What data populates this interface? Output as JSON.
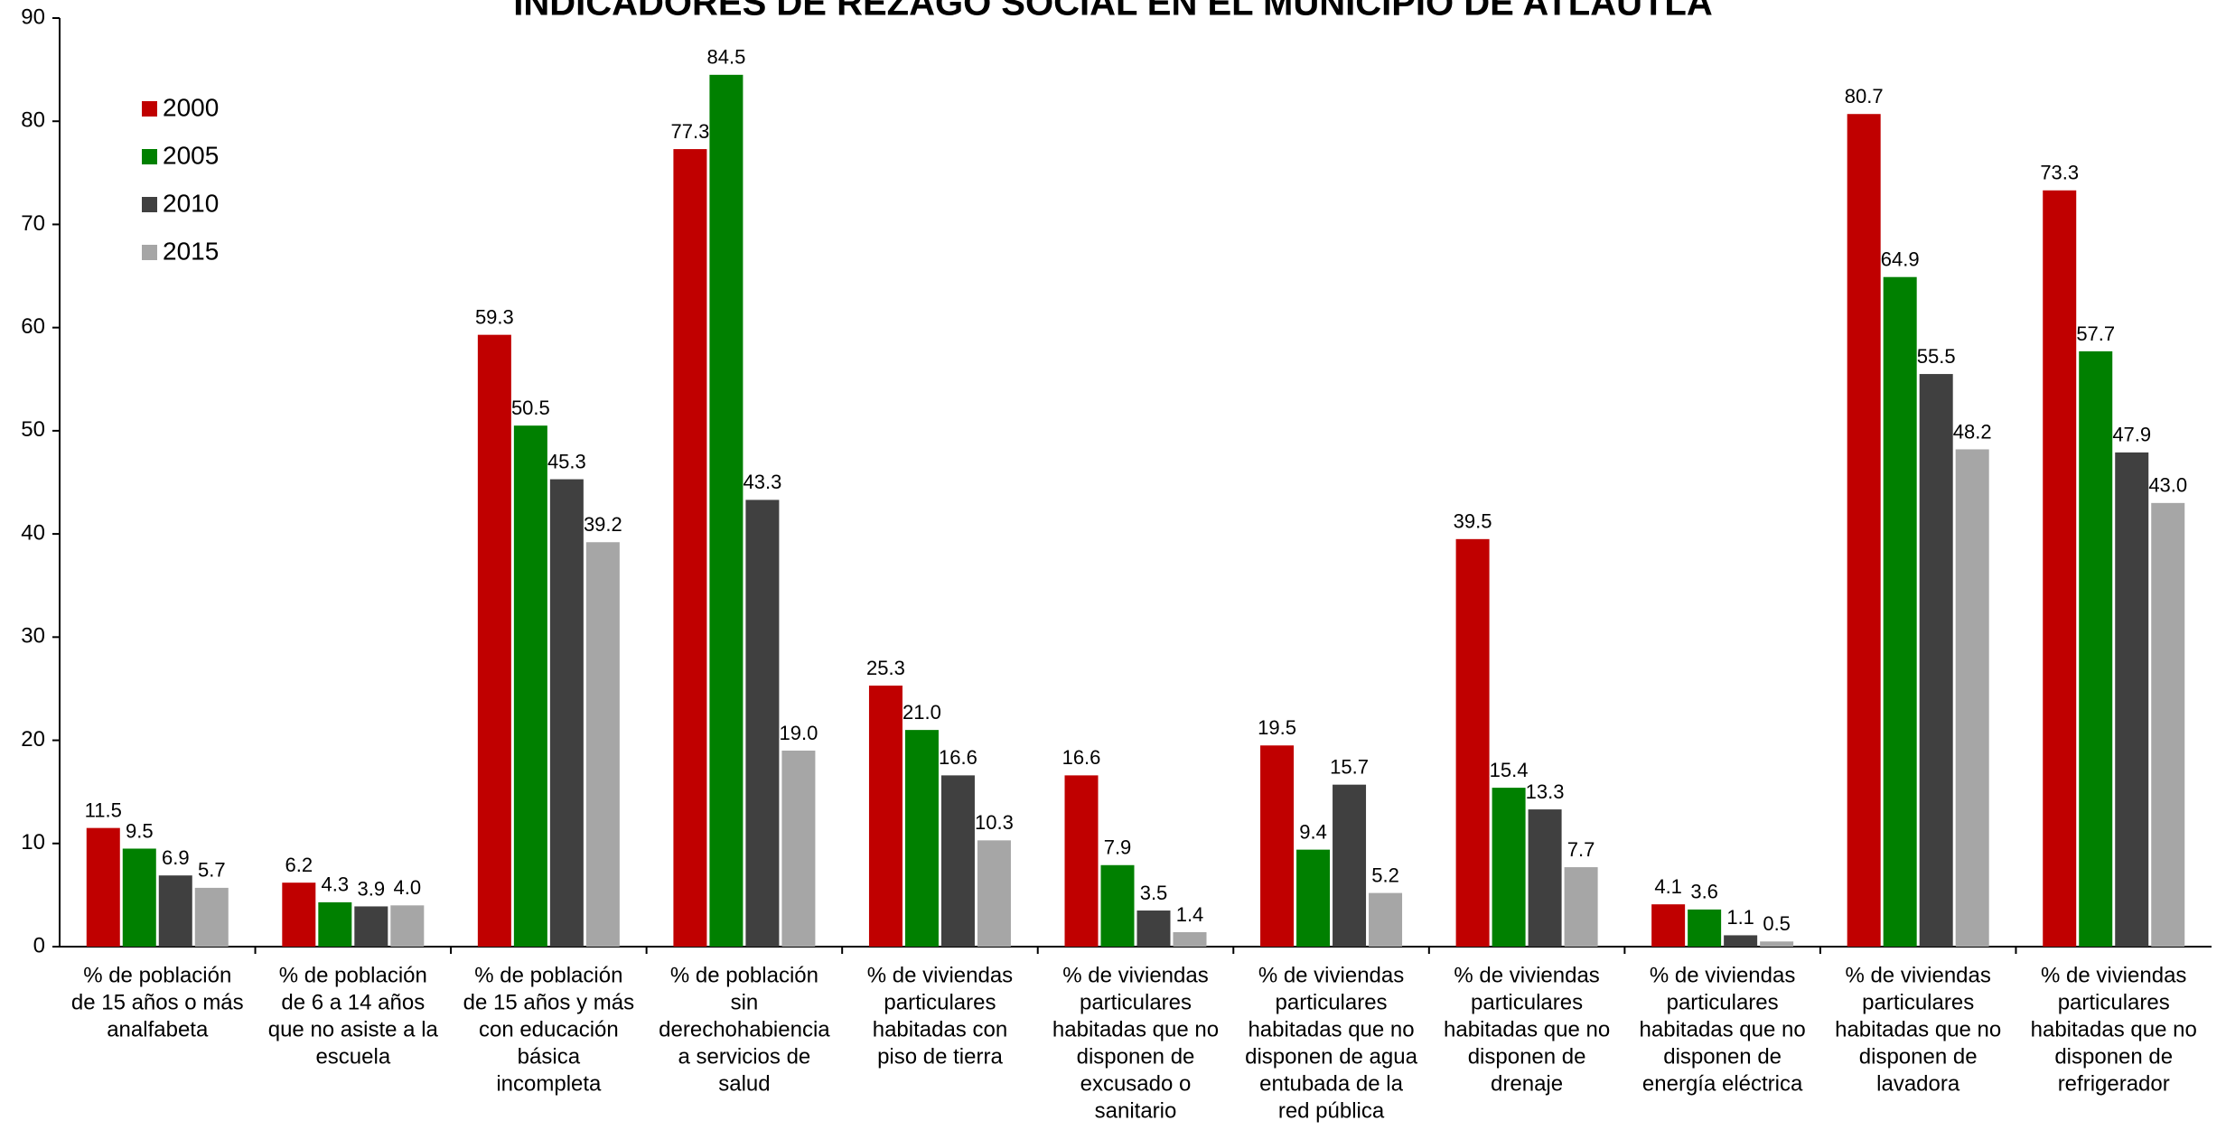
{
  "chart_data": {
    "type": "bar",
    "title": "INDICADORES DE REZAGO SOCIAL EN EL MUNICIPIO DE ATLAUTLA",
    "categories": [
      [
        "% de población",
        "de 15 años o más",
        "analfabeta"
      ],
      [
        "% de población",
        "de 6 a 14 años",
        "que no asiste a la",
        "escuela"
      ],
      [
        "% de población",
        "de 15 años y más",
        "con educación",
        "básica",
        "incompleta"
      ],
      [
        "% de población",
        "sin",
        "derechohabiencia",
        "a servicios de",
        "salud"
      ],
      [
        "% de viviendas",
        "particulares",
        "habitadas con",
        "piso de tierra"
      ],
      [
        "% de viviendas",
        "particulares",
        "habitadas que no",
        "disponen de",
        "excusado o",
        "sanitario"
      ],
      [
        "% de viviendas",
        "particulares",
        "habitadas que no",
        "disponen de agua",
        "entubada de la",
        "red pública"
      ],
      [
        "% de viviendas",
        "particulares",
        "habitadas que no",
        "disponen de",
        "drenaje"
      ],
      [
        "% de viviendas",
        "particulares",
        "habitadas que no",
        "disponen de",
        "energía eléctrica"
      ],
      [
        "% de viviendas",
        "particulares",
        "habitadas que no",
        "disponen de",
        "lavadora"
      ],
      [
        "% de viviendas",
        "particulares",
        "habitadas que no",
        "disponen de",
        "refrigerador"
      ]
    ],
    "series": [
      {
        "name": "2000",
        "color": "#c00000",
        "values": [
          11.5,
          6.2,
          59.3,
          77.3,
          25.3,
          16.6,
          19.5,
          39.5,
          4.1,
          80.7,
          73.3
        ],
        "value_labels": [
          "11.5",
          "6.2",
          "59.3",
          "77.3",
          "25.3",
          "16.6",
          "19.5",
          "39.5",
          "4.1",
          "80.7",
          "73.3"
        ]
      },
      {
        "name": "2005",
        "color": "#008000",
        "values": [
          9.5,
          4.3,
          50.5,
          84.5,
          21.0,
          7.9,
          9.4,
          15.4,
          3.6,
          64.9,
          57.7
        ],
        "value_labels": [
          "9.5",
          "4.3",
          "50.5",
          "84.5",
          "21.0",
          "7.9",
          "9.4",
          "15.4",
          "3.6",
          "64.9",
          "57.7"
        ]
      },
      {
        "name": "2010",
        "color": "#404040",
        "values": [
          6.9,
          3.9,
          45.3,
          43.3,
          16.6,
          3.5,
          15.7,
          13.3,
          1.1,
          55.5,
          47.9
        ],
        "value_labels": [
          "6.9",
          "3.9",
          "45.3",
          "43.3",
          "16.6",
          "3.5",
          "15.7",
          "13.3",
          "1.1",
          "55.5",
          "47.9"
        ]
      },
      {
        "name": "2015",
        "color": "#a6a6a6",
        "values": [
          5.7,
          4.0,
          39.2,
          19.0,
          10.3,
          1.4,
          5.2,
          7.7,
          0.5,
          48.2,
          43.0
        ],
        "value_labels": [
          "5.7",
          "4.0",
          "39.2",
          "19.0",
          "10.3",
          "1.4",
          "5.2",
          "7.7",
          "0.5",
          "48.2",
          "43.0"
        ]
      }
    ],
    "ylim": [
      0,
      90
    ],
    "yticks": [
      0,
      10,
      20,
      30,
      40,
      50,
      60,
      70,
      80,
      90
    ],
    "grid": false,
    "legend": "upper left"
  }
}
